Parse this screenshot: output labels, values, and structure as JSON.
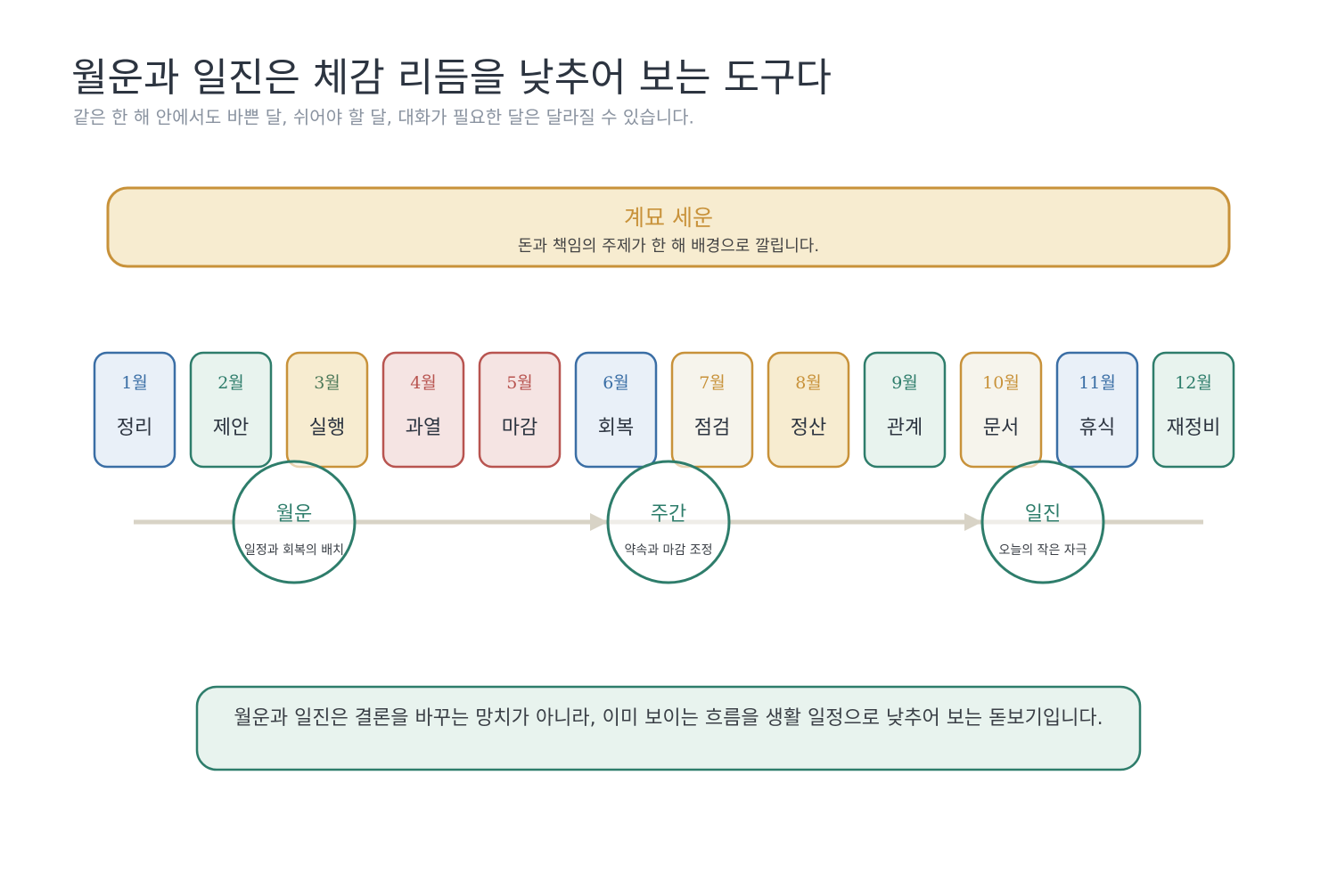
{
  "header": {
    "title": "월운과 일진은 체감 리듬을 낮추어 보는 도구다",
    "subtitle": "같은 한 해 안에서도 바쁜 달, 쉬어야 할 달, 대화가 필요한 달은 달라질 수 있습니다."
  },
  "banner": {
    "title": "계묘 세운",
    "subtitle": "돈과 책임의 주제가 한 해 배경으로 깔립니다."
  },
  "months": [
    {
      "label": "1월",
      "name": "정리"
    },
    {
      "label": "2월",
      "name": "제안"
    },
    {
      "label": "3월",
      "name": "실행"
    },
    {
      "label": "4월",
      "name": "과열"
    },
    {
      "label": "5월",
      "name": "마감"
    },
    {
      "label": "6월",
      "name": "회복"
    },
    {
      "label": "7월",
      "name": "점검"
    },
    {
      "label": "8월",
      "name": "정산"
    },
    {
      "label": "9월",
      "name": "관계"
    },
    {
      "label": "10월",
      "name": "문서"
    },
    {
      "label": "11월",
      "name": "휴식"
    },
    {
      "label": "12월",
      "name": "재정비"
    }
  ],
  "stages": [
    {
      "title": "월운",
      "description": "일정과 회복의 배치"
    },
    {
      "title": "주간",
      "description": "약속과 마감 조정"
    },
    {
      "title": "일진",
      "description": "오늘의 작은 자극"
    }
  ],
  "footer": {
    "text": "월운과 일진은 결론을 바꾸는 망치가 아니라, 이미 보이는 흐름을 생활 일정으로 낮추어 보는 돋보기입니다."
  }
}
